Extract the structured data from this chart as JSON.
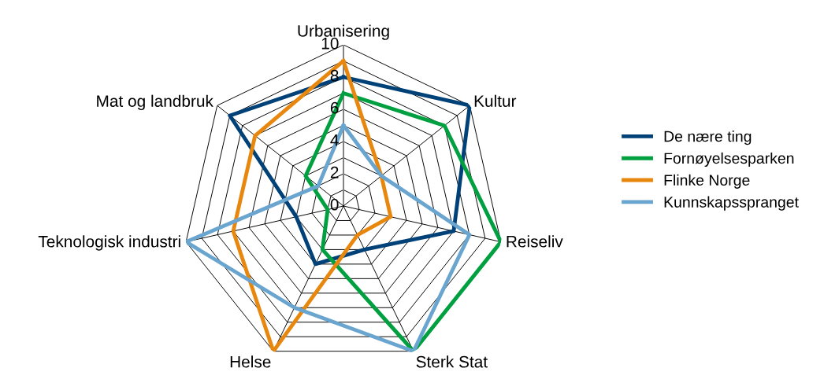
{
  "chart_data": {
    "type": "radar",
    "categories": [
      "Urbanisering",
      "Kultur",
      "Reiseliv",
      "Sterk Stat",
      "Helse",
      "Teknologisk industri",
      "Mat og landbruk"
    ],
    "series": [
      {
        "name": "De nære ting",
        "color": "#004178",
        "values": [
          8,
          10,
          7,
          3,
          4,
          3,
          9
        ]
      },
      {
        "name": "Fornøyelsesparken",
        "color": "#00a040",
        "values": [
          7,
          8,
          10,
          10,
          3,
          1,
          3
        ]
      },
      {
        "name": "Flinke Norge",
        "color": "#e8870e",
        "values": [
          9,
          3,
          3,
          2,
          10,
          7,
          7
        ]
      },
      {
        "name": "Kunnskapsspranget",
        "color": "#6aa5cf",
        "values": [
          5,
          3,
          8,
          10,
          7,
          10,
          2
        ]
      }
    ],
    "ylim": [
      0,
      10
    ],
    "yticks": [
      0,
      2,
      4,
      6,
      8,
      10
    ],
    "legend": "right"
  }
}
